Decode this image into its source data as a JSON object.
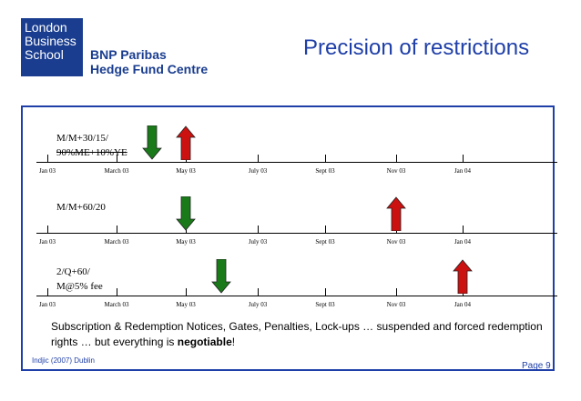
{
  "logo": {
    "school_lines": [
      "London",
      "Business",
      "School"
    ],
    "centre_lines": [
      "BNP Paribas",
      "Hedge Fund Centre"
    ],
    "brand_color": "#1a3d8f"
  },
  "title": "Precision of restrictions",
  "rows": [
    {
      "label_lines": [
        "M/M+30/15/",
        "90%ME+10%YE"
      ],
      "ticks": [
        "Jan 03",
        "March 03",
        "May 03",
        "July 03",
        "Sept 03",
        "Nov 03",
        "Jan 04"
      ],
      "arrows": [
        {
          "direction": "down",
          "color": "#1a7a1a",
          "position": "May 03"
        },
        {
          "direction": "up",
          "color": "#cc1111",
          "position": "May 03"
        }
      ]
    },
    {
      "label_lines": [
        "M/M+60/20"
      ],
      "ticks": [
        "Jan 03",
        "March 03",
        "May 03",
        "July 03",
        "Sept 03",
        "Nov 03",
        "Jan 04"
      ],
      "arrows": [
        {
          "direction": "down",
          "color": "#1a7a1a",
          "position": "May 03"
        },
        {
          "direction": "up",
          "color": "#cc1111",
          "position": "Nov 03"
        }
      ]
    },
    {
      "label_lines": [
        "2/Q+60/",
        "M@5% fee"
      ],
      "ticks": [
        "Jan 03",
        "March 03",
        "May 03",
        "July 03",
        "Sept 03",
        "Nov 03",
        "Jan 04"
      ],
      "arrows": [
        {
          "direction": "down",
          "color": "#1a7a1a",
          "position": "June 03"
        },
        {
          "direction": "up",
          "color": "#cc1111",
          "position": "Jan 04"
        }
      ]
    }
  ],
  "caption": {
    "text_before": "Subscription & Redemption Notices, Gates, Penalties, Lock-ups … suspended and forced redemption rights … but everything is ",
    "bold_word": "negotiable",
    "text_after": "!"
  },
  "footer": {
    "source": "Indjic (2007) Dublin",
    "page": "Page 9"
  }
}
